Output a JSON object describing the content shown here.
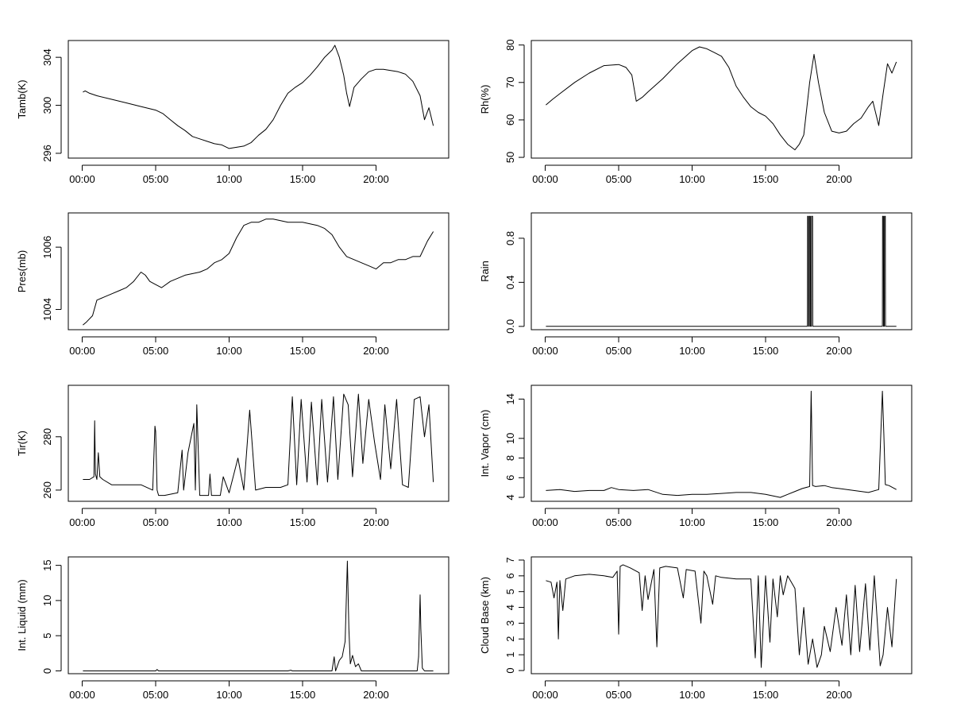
{
  "chart_data": [
    {
      "type": "line",
      "ylabel": "Tamb(K)",
      "xlabel": "",
      "xticks": [
        "00:00",
        "05:00",
        "10:00",
        "15:00",
        "20:00"
      ],
      "xlim": [
        0,
        24
      ],
      "ylim": [
        295.6,
        305.4
      ],
      "yticks": [
        296,
        300,
        304
      ],
      "x": [
        0.05,
        0.2,
        0.5,
        1.0,
        2.0,
        3.0,
        4.0,
        5.0,
        5.5,
        6.0,
        6.5,
        7.0,
        7.5,
        8.0,
        8.5,
        9.0,
        9.5,
        10.0,
        10.5,
        11.0,
        11.5,
        12.0,
        12.5,
        13.0,
        13.5,
        14.0,
        14.5,
        15.0,
        15.5,
        16.0,
        16.5,
        17.0,
        17.2,
        17.5,
        17.8,
        18.0,
        18.2,
        18.5,
        19.0,
        19.5,
        20.0,
        20.5,
        21.0,
        21.5,
        22.0,
        22.5,
        23.0,
        23.3,
        23.6,
        23.9
      ],
      "values": [
        301.1,
        301.2,
        301.0,
        300.8,
        300.5,
        300.2,
        299.9,
        299.6,
        299.3,
        298.8,
        298.3,
        297.9,
        297.4,
        297.2,
        297.0,
        296.8,
        296.7,
        296.4,
        296.5,
        296.6,
        296.9,
        297.5,
        298.0,
        298.8,
        300.0,
        301.0,
        301.5,
        301.9,
        302.5,
        303.2,
        304.0,
        304.6,
        305.0,
        304.0,
        302.5,
        301.0,
        299.9,
        301.5,
        302.2,
        302.8,
        303.0,
        303.0,
        302.9,
        302.8,
        302.6,
        302.0,
        300.8,
        298.8,
        299.8,
        298.3
      ]
    },
    {
      "type": "line",
      "ylabel": "Rh(%)",
      "xlabel": "",
      "xticks": [
        "00:00",
        "05:00",
        "10:00",
        "15:00",
        "20:00"
      ],
      "xlim": [
        0,
        24
      ],
      "ylim": [
        49.8,
        81.2
      ],
      "yticks": [
        50,
        60,
        70,
        80
      ],
      "x": [
        0.05,
        0.5,
        1.0,
        2.0,
        3.0,
        4.0,
        5.0,
        5.5,
        5.9,
        6.2,
        6.6,
        7.0,
        8.0,
        9.0,
        10.0,
        10.5,
        11.0,
        11.5,
        12.0,
        12.5,
        13.0,
        13.5,
        14.0,
        14.5,
        15.0,
        15.5,
        16.0,
        16.5,
        17.0,
        17.3,
        17.6,
        18.0,
        18.3,
        18.6,
        19.0,
        19.5,
        20.0,
        20.5,
        21.0,
        21.5,
        22.0,
        22.3,
        22.7,
        23.0,
        23.3,
        23.6,
        23.9
      ],
      "values": [
        64.0,
        65.5,
        67.0,
        70.0,
        72.5,
        74.5,
        74.8,
        74.0,
        72.0,
        65.0,
        66.0,
        67.5,
        71.0,
        75.0,
        78.5,
        79.5,
        79.0,
        78.0,
        77.0,
        74.0,
        69.0,
        66.0,
        63.5,
        62.0,
        61.0,
        59.0,
        56.0,
        53.5,
        52.0,
        53.5,
        56.0,
        70.0,
        77.5,
        70.0,
        62.0,
        57.0,
        56.5,
        57.0,
        59.0,
        60.5,
        63.5,
        65.0,
        58.5,
        67.0,
        75.0,
        72.5,
        75.5
      ]
    },
    {
      "type": "line",
      "ylabel": "Pres(mb)",
      "xlabel": "",
      "xticks": [
        "00:00",
        "05:00",
        "10:00",
        "15:00",
        "20:00"
      ],
      "xlim": [
        0,
        24
      ],
      "ylim": [
        1003.35,
        1007.1
      ],
      "yticks": [
        1004,
        1006
      ],
      "x": [
        0.05,
        0.3,
        0.7,
        1.0,
        1.5,
        2.0,
        2.5,
        3.0,
        3.5,
        4.0,
        4.3,
        4.6,
        5.0,
        5.4,
        6.0,
        7.0,
        8.0,
        8.5,
        9.0,
        9.5,
        10.0,
        10.5,
        11.0,
        11.5,
        12.0,
        12.5,
        13.0,
        14.0,
        15.0,
        16.0,
        16.5,
        17.0,
        17.5,
        18.0,
        18.5,
        19.0,
        19.5,
        20.0,
        20.5,
        21.0,
        21.5,
        22.0,
        22.5,
        23.0,
        23.5,
        23.9
      ],
      "values": [
        1003.5,
        1003.6,
        1003.8,
        1004.3,
        1004.4,
        1004.5,
        1004.6,
        1004.7,
        1004.9,
        1005.2,
        1005.1,
        1004.9,
        1004.8,
        1004.7,
        1004.9,
        1005.1,
        1005.2,
        1005.3,
        1005.5,
        1005.6,
        1005.8,
        1006.3,
        1006.7,
        1006.8,
        1006.8,
        1006.9,
        1006.9,
        1006.8,
        1006.8,
        1006.7,
        1006.6,
        1006.4,
        1006.0,
        1005.7,
        1005.6,
        1005.5,
        1005.4,
        1005.3,
        1005.5,
        1005.5,
        1005.6,
        1005.6,
        1005.7,
        1005.7,
        1006.2,
        1006.5
      ]
    },
    {
      "type": "line",
      "ylabel": "Rain",
      "xlabel": "",
      "xticks": [
        "00:00",
        "05:00",
        "10:00",
        "15:00",
        "20:00"
      ],
      "xlim": [
        0,
        24
      ],
      "ylim": [
        -0.03,
        1.03
      ],
      "yticks": [
        0.0,
        0.4,
        0.8
      ],
      "x": [
        0.05,
        17.85,
        17.86,
        17.92,
        17.93,
        17.98,
        17.99,
        18.05,
        18.06,
        18.12,
        18.13,
        18.2,
        18.21,
        22.95,
        22.96,
        23.02,
        23.03,
        23.08,
        23.09,
        23.15,
        23.16,
        23.9
      ],
      "values": [
        0,
        0,
        1,
        1,
        0,
        0,
        1,
        1,
        0,
        0,
        1,
        1,
        0,
        0,
        1,
        1,
        0,
        0,
        1,
        1,
        0,
        0
      ]
    },
    {
      "type": "line",
      "ylabel": "Tir(K)",
      "xlabel": "",
      "xticks": [
        "00:00",
        "05:00",
        "10:00",
        "15:00",
        "20:00"
      ],
      "xlim": [
        0,
        24
      ],
      "ylim": [
        255.8,
        299.3
      ],
      "yticks": [
        260,
        280
      ],
      "x": [
        0.05,
        0.5,
        0.8,
        0.85,
        0.9,
        1.0,
        1.1,
        1.2,
        1.4,
        2.0,
        3.0,
        4.0,
        4.8,
        4.95,
        5.0,
        5.1,
        5.2,
        5.6,
        6.5,
        6.8,
        6.9,
        7.2,
        7.6,
        7.7,
        7.8,
        8.0,
        8.6,
        8.7,
        8.8,
        9.4,
        9.6,
        10.0,
        10.6,
        11.0,
        11.4,
        11.8,
        12.5,
        13.5,
        14.0,
        14.3,
        14.6,
        14.9,
        15.3,
        15.6,
        16.0,
        16.3,
        16.7,
        17.1,
        17.4,
        17.8,
        18.1,
        18.4,
        18.8,
        19.1,
        19.5,
        19.9,
        20.3,
        20.6,
        21.0,
        21.4,
        21.8,
        22.2,
        22.6,
        23.0,
        23.3,
        23.6,
        23.9
      ],
      "values": [
        264,
        264,
        265,
        286,
        266,
        264,
        274,
        265,
        264,
        262,
        262,
        262,
        260,
        284,
        282,
        260,
        258,
        258,
        259,
        275,
        260,
        274,
        285,
        260,
        292,
        258,
        258,
        266,
        258,
        258,
        265,
        259,
        272,
        260,
        290,
        260,
        261,
        261,
        262,
        295,
        262,
        294,
        263,
        293,
        262,
        294,
        263,
        295,
        264,
        296,
        292,
        265,
        296,
        270,
        294,
        278,
        264,
        292,
        268,
        294,
        262,
        261,
        294,
        295,
        280,
        292,
        263
      ]
    },
    {
      "type": "line",
      "ylabel": "Int. Vapor (cm)",
      "xlabel": "",
      "xticks": [
        "00:00",
        "05:00",
        "10:00",
        "15:00",
        "20:00"
      ],
      "xlim": [
        0,
        24
      ],
      "ylim": [
        3.6,
        15.4
      ],
      "yticks": [
        4,
        6,
        8,
        10,
        14
      ],
      "x": [
        0.05,
        1.0,
        2.0,
        3.0,
        4.0,
        4.5,
        5.0,
        6.0,
        7.0,
        8.0,
        9.0,
        10.0,
        11.0,
        12.0,
        13.0,
        14.0,
        15.0,
        16.0,
        16.5,
        17.0,
        17.5,
        18.0,
        18.1,
        18.15,
        18.2,
        18.4,
        19.0,
        19.5,
        20.0,
        21.0,
        22.0,
        22.7,
        22.95,
        23.05,
        23.15,
        23.4,
        23.9
      ],
      "values": [
        4.7,
        4.8,
        4.6,
        4.7,
        4.7,
        5.0,
        4.8,
        4.7,
        4.8,
        4.3,
        4.2,
        4.3,
        4.3,
        4.4,
        4.5,
        4.5,
        4.3,
        4.0,
        4.3,
        4.6,
        4.9,
        5.1,
        14.8,
        10.0,
        5.2,
        5.1,
        5.2,
        5.0,
        4.9,
        4.7,
        4.5,
        4.8,
        14.8,
        10.5,
        5.3,
        5.2,
        4.8
      ]
    },
    {
      "type": "line",
      "ylabel": "Int. Liquid (mm)",
      "xlabel": "",
      "xticks": [
        "00:00",
        "05:00",
        "10:00",
        "15:00",
        "20:00"
      ],
      "xlim": [
        0,
        24
      ],
      "ylim": [
        -0.4,
        16.2
      ],
      "yticks": [
        0,
        5,
        10,
        15
      ],
      "x": [
        0.05,
        5.0,
        5.1,
        5.2,
        14.0,
        14.2,
        14.3,
        17.0,
        17.15,
        17.25,
        17.5,
        17.7,
        17.9,
        18.05,
        18.15,
        18.25,
        18.4,
        18.6,
        18.8,
        19.0,
        20.0,
        21.0,
        22.0,
        22.8,
        22.9,
        23.0,
        23.05,
        23.15,
        23.3,
        23.9
      ],
      "values": [
        0,
        0,
        0.2,
        0,
        0,
        0.1,
        0,
        0,
        2.0,
        0,
        1.5,
        2.0,
        4.2,
        15.6,
        6.0,
        1.0,
        2.2,
        0.6,
        1.0,
        0,
        0,
        0,
        0,
        0,
        2.0,
        10.8,
        6.0,
        0.4,
        0,
        0
      ]
    },
    {
      "type": "line",
      "ylabel": "Cloud Base (km)",
      "xlabel": "",
      "xticks": [
        "00:00",
        "05:00",
        "10:00",
        "15:00",
        "20:00"
      ],
      "xlim": [
        0,
        24
      ],
      "ylim": [
        -0.2,
        7.2
      ],
      "yticks": [
        0,
        1,
        2,
        3,
        4,
        5,
        6,
        7
      ],
      "x": [
        0.05,
        0.4,
        0.6,
        0.8,
        0.9,
        1.0,
        1.2,
        1.4,
        2.0,
        3.0,
        4.0,
        4.6,
        4.9,
        5.0,
        5.1,
        5.3,
        5.8,
        6.4,
        6.6,
        6.8,
        7.0,
        7.4,
        7.6,
        7.8,
        8.2,
        9.0,
        9.4,
        9.6,
        10.2,
        10.6,
        10.8,
        11.0,
        11.4,
        11.6,
        12.0,
        13.0,
        14.0,
        14.3,
        14.5,
        14.7,
        15.0,
        15.3,
        15.5,
        15.8,
        16.0,
        16.2,
        16.5,
        17.0,
        17.3,
        17.6,
        17.9,
        18.2,
        18.5,
        18.8,
        19.0,
        19.4,
        19.8,
        20.2,
        20.5,
        20.8,
        21.1,
        21.4,
        21.8,
        22.1,
        22.4,
        22.8,
        23.0,
        23.3,
        23.6,
        23.9
      ],
      "values": [
        5.7,
        5.6,
        4.6,
        5.6,
        2.0,
        5.7,
        3.8,
        5.8,
        6.0,
        6.1,
        6.0,
        5.9,
        6.3,
        2.3,
        6.6,
        6.7,
        6.5,
        6.2,
        3.8,
        6.0,
        4.5,
        6.4,
        1.5,
        6.5,
        6.6,
        6.5,
        4.6,
        6.4,
        6.3,
        3.0,
        6.3,
        6.0,
        4.2,
        6.0,
        5.9,
        5.8,
        5.8,
        0.8,
        6.0,
        0.2,
        6.0,
        1.8,
        5.8,
        3.4,
        6.0,
        4.8,
        6.0,
        5.2,
        1.0,
        4.0,
        0.4,
        2.0,
        0.2,
        1.0,
        2.8,
        1.2,
        4.0,
        1.6,
        4.8,
        1.0,
        5.4,
        1.2,
        5.5,
        1.3,
        6.0,
        0.3,
        1.0,
        4.0,
        1.5,
        5.8
      ]
    }
  ]
}
